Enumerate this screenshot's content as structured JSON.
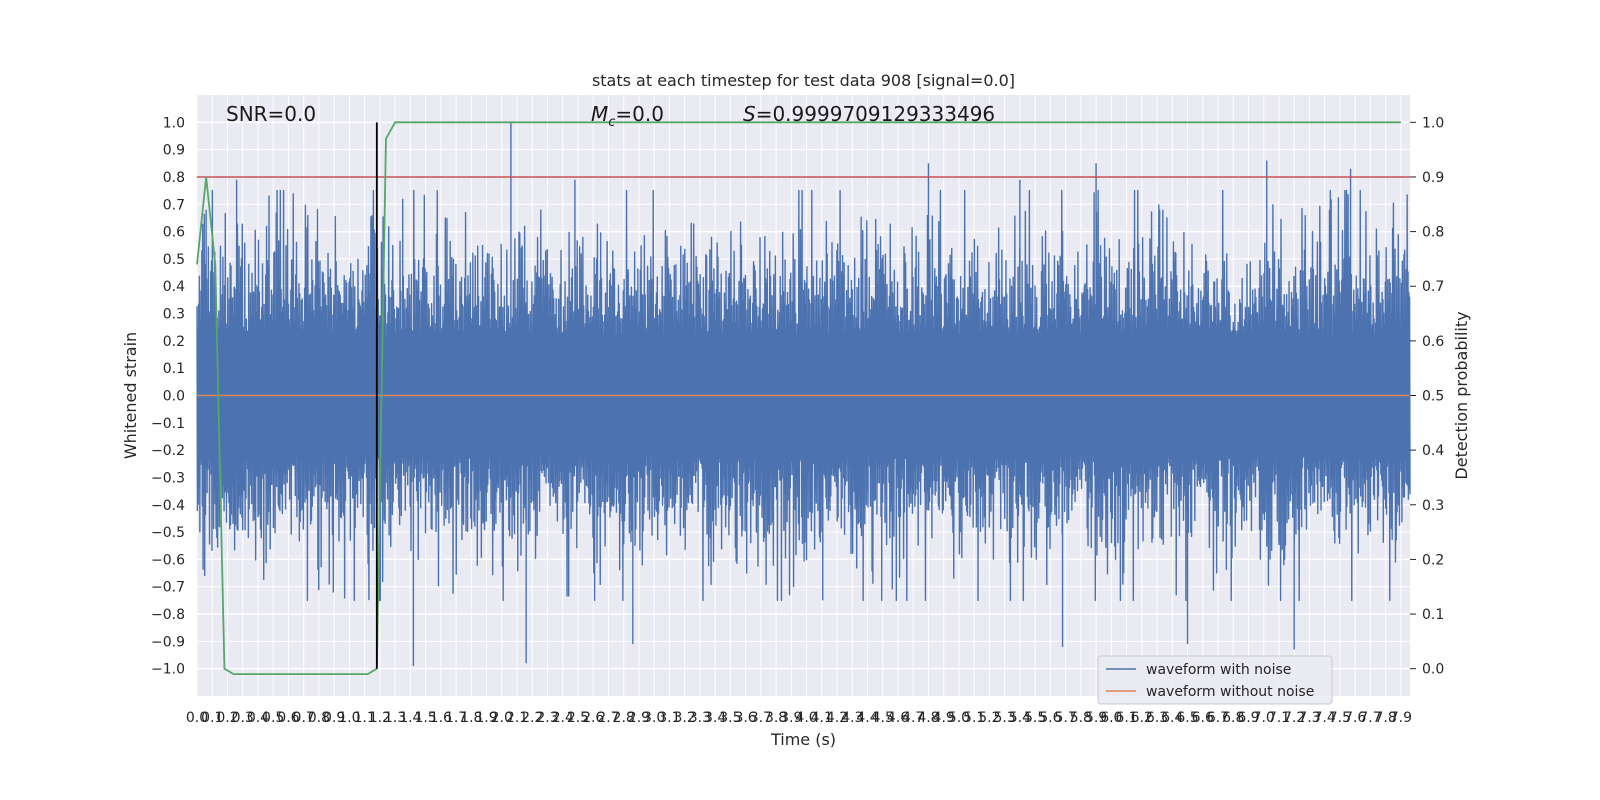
{
  "chart_data": {
    "type": "line",
    "title": "stats at each timestep for test data 908 [signal=0.0]",
    "xlabel": "Time (s)",
    "ylabel": "Whitened strain",
    "y2label": "Detection probability",
    "xlim": [
      0.0,
      7.96
    ],
    "ylim": [
      -1.1,
      1.1
    ],
    "y2lim": [
      -0.05,
      1.05
    ],
    "x_ticks": [
      0.0,
      0.1,
      0.2,
      0.3,
      0.4,
      0.5,
      0.6,
      0.7,
      0.8,
      0.9,
      1.0,
      1.1,
      1.2,
      1.3,
      1.4,
      1.5,
      1.6,
      1.7,
      1.8,
      1.9,
      2.0,
      2.1,
      2.2,
      2.3,
      2.4,
      2.5,
      2.6,
      2.7,
      2.8,
      2.9,
      3.0,
      3.1,
      3.2,
      3.3,
      3.4,
      3.5,
      3.6,
      3.7,
      3.8,
      3.9,
      4.0,
      4.1,
      4.2,
      4.3,
      4.4,
      4.5,
      4.6,
      4.7,
      4.8,
      4.9,
      5.0,
      5.1,
      5.2,
      5.3,
      5.4,
      5.5,
      5.6,
      5.7,
      5.8,
      5.9,
      6.0,
      6.1,
      6.2,
      6.3,
      6.4,
      6.5,
      6.6,
      6.7,
      6.8,
      6.9,
      7.0,
      7.1,
      7.2,
      7.3,
      7.4,
      7.5,
      7.6,
      7.7,
      7.8,
      7.9
    ],
    "x_tick_labels": [
      "0.0",
      "0.1",
      "0.2",
      "0.3",
      "0.4",
      "0.5",
      "0.6",
      "0.7",
      "0.8",
      "0.9",
      "1.0",
      "1.1",
      "1.2",
      "1.3",
      "1.4",
      "1.5",
      "1.6",
      "1.7",
      "1.8",
      "1.9",
      "2.0",
      "2.1",
      "2.2",
      "2.3",
      "2.4",
      "2.5",
      "2.6",
      "2.7",
      "2.8",
      "2.9",
      "3.0",
      "3.1",
      "3.2",
      "3.3",
      "3.4",
      "3.5",
      "3.6",
      "3.7",
      "3.8",
      "3.9",
      "4.0",
      "4.1",
      "4.2",
      "4.3",
      "4.4",
      "4.5",
      "4.6",
      "4.7",
      "4.8",
      "4.9",
      "5.0",
      "5.1",
      "5.2",
      "5.3",
      "5.4",
      "5.5",
      "5.6",
      "5.7",
      "5.8",
      "5.9",
      "6.0",
      "6.1",
      "6.2",
      "6.3",
      "6.4",
      "6.5",
      "6.6",
      "6.7",
      "6.8",
      "6.9",
      "7.0",
      "7.1",
      "7.2",
      "7.3",
      "7.4",
      "7.5",
      "7.6",
      "7.7",
      "7.8",
      "7.9"
    ],
    "y_ticks": [
      1.0,
      0.9,
      0.8,
      0.7,
      0.6,
      0.5,
      0.4,
      0.3,
      0.2,
      0.1,
      0.0,
      -0.1,
      -0.2,
      -0.3,
      -0.4,
      -0.5,
      -0.6,
      -0.7,
      -0.8,
      -0.9,
      -1.0
    ],
    "y_tick_labels": [
      "1.0",
      "0.9",
      "0.8",
      "0.7",
      "0.6",
      "0.5",
      "0.4",
      "0.3",
      "0.2",
      "0.1",
      "0.0",
      "−0.1",
      "−0.2",
      "−0.3",
      "−0.4",
      "−0.5",
      "−0.6",
      "−0.7",
      "−0.8",
      "−0.9",
      "−1.0"
    ],
    "y2_ticks": [
      1.0,
      0.9,
      0.8,
      0.7,
      0.6,
      0.5,
      0.4,
      0.3,
      0.2,
      0.1,
      0.0
    ],
    "y2_tick_labels": [
      "1.0",
      "0.9",
      "0.8",
      "0.7",
      "0.6",
      "0.5",
      "0.4",
      "0.3",
      "0.2",
      "0.1",
      "0.0"
    ],
    "grid": true,
    "legend_position": "bottom-right",
    "series": [
      {
        "name": "waveform with noise",
        "color": "#4c72b0",
        "kind": "noise",
        "axis": "left",
        "envelope": 0.6,
        "peaks": [
          [
            0.06,
            0.68
          ],
          [
            0.26,
            0.79
          ],
          [
            0.52,
            0.67
          ],
          [
            1.15,
            0.66
          ],
          [
            1.35,
            0.72
          ],
          [
            2.06,
            1.0
          ],
          [
            2.48,
            0.79
          ],
          [
            4.8,
            0.85
          ],
          [
            5.4,
            0.79
          ],
          [
            5.9,
            0.85
          ],
          [
            7.02,
            0.86
          ],
          [
            7.57,
            0.83
          ],
          [
            1.42,
            -0.99
          ],
          [
            2.16,
            -0.98
          ],
          [
            2.86,
            -0.91
          ],
          [
            5.68,
            -0.92
          ],
          [
            6.5,
            -0.91
          ],
          [
            7.2,
            -0.93
          ]
        ]
      },
      {
        "name": "waveform without noise",
        "color": "#dd8452",
        "kind": "line",
        "axis": "left",
        "x": [
          0.0,
          7.96
        ],
        "y": [
          0.0,
          0.0
        ]
      },
      {
        "color": "#55a868",
        "axis": "right",
        "kind": "line",
        "x": [
          0.0,
          0.06,
          0.12,
          0.18,
          0.24,
          0.5,
          1.0,
          1.12,
          1.18,
          1.24,
          1.3,
          1.5,
          7.9
        ],
        "y": [
          0.74,
          0.9,
          0.74,
          0.0,
          -0.01,
          -0.01,
          -0.01,
          -0.01,
          0.0,
          0.97,
          1.0,
          1.0,
          1.0
        ]
      }
    ],
    "threshold": {
      "axis": "right",
      "value": 0.9,
      "color": "#c44e52"
    },
    "vertical_marker": {
      "x": 1.18,
      "color": "#000000"
    },
    "annotations": {
      "snr": "SNR=0.0",
      "mc_symbol": "M",
      "mc_sub": "c",
      "mc_value": "=0.0",
      "s_symbol": "S",
      "s_value": "=0.9999709129333496"
    }
  }
}
